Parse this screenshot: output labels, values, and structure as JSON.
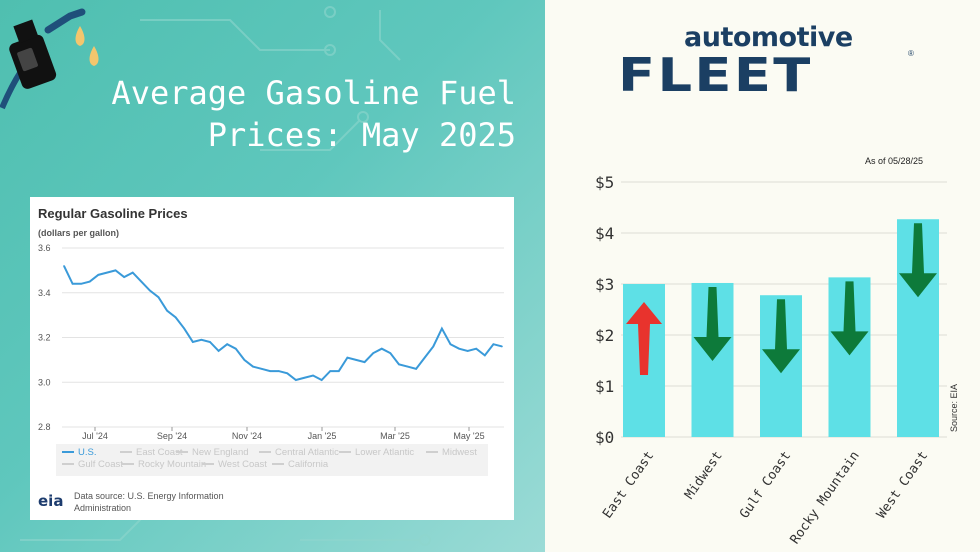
{
  "headline": {
    "line1": "Average Gasoline Fuel",
    "line2": "Prices: May 2025"
  },
  "eia_card": {
    "title": "Regular Gasoline Prices",
    "units": "(dollars per gallon)",
    "legend": [
      "U.S.",
      "East Coast",
      "New England",
      "Central Atlantic",
      "Lower Atlantic",
      "Midwest",
      "Gulf Coast",
      "Rocky Mountain",
      "West Coast",
      "California"
    ],
    "logo_text": "eia",
    "source": "Data source: U.S. Energy Information Administration"
  },
  "brand": {
    "top": "automotive",
    "main": "FLEET",
    "reg": "®"
  },
  "bar_panel": {
    "as_of": "As of 05/28/25",
    "source_label": "Source: EIA"
  },
  "colors": {
    "teal_bg": "#5fc7bd",
    "line": "#3a9ad9",
    "bar": "#5ee0e6",
    "up": "#e8332d",
    "down": "#0d7a3a",
    "brand": "#1b3f63"
  },
  "chart_data": [
    {
      "type": "line",
      "title": "Regular Gasoline Prices",
      "ylabel": "(dollars per gallon)",
      "ylim": [
        2.8,
        3.6
      ],
      "yticks": [
        "2.8",
        "3.0",
        "3.2",
        "3.4",
        "3.6"
      ],
      "xticks": [
        "Jul '24",
        "Sep '24",
        "Nov '24",
        "Jan '25",
        "Mar '25",
        "May '25"
      ],
      "grid": true,
      "legend_position": "bottom",
      "series": [
        {
          "name": "U.S.",
          "values": [
            3.52,
            3.44,
            3.44,
            3.45,
            3.48,
            3.49,
            3.5,
            3.47,
            3.49,
            3.45,
            3.41,
            3.38,
            3.32,
            3.29,
            3.24,
            3.18,
            3.19,
            3.18,
            3.14,
            3.17,
            3.15,
            3.1,
            3.07,
            3.06,
            3.05,
            3.05,
            3.04,
            3.01,
            3.02,
            3.03,
            3.01,
            3.05,
            3.05,
            3.11,
            3.1,
            3.09,
            3.13,
            3.15,
            3.13,
            3.08,
            3.07,
            3.06,
            3.11,
            3.16,
            3.24,
            3.17,
            3.15,
            3.14,
            3.15,
            3.12,
            3.17,
            3.16
          ]
        }
      ]
    },
    {
      "type": "bar",
      "categories": [
        "East Coast",
        "Midwest",
        "Gulf Coast",
        "Rocky Mountain",
        "West Coast"
      ],
      "values": [
        3.0,
        3.02,
        2.78,
        3.13,
        4.27
      ],
      "trend": [
        "up",
        "down",
        "down",
        "down",
        "down"
      ],
      "yticks": [
        "$0",
        "$1",
        "$2",
        "$3",
        "$4",
        "$5"
      ],
      "ylim": [
        0,
        5
      ],
      "grid": true
    }
  ]
}
